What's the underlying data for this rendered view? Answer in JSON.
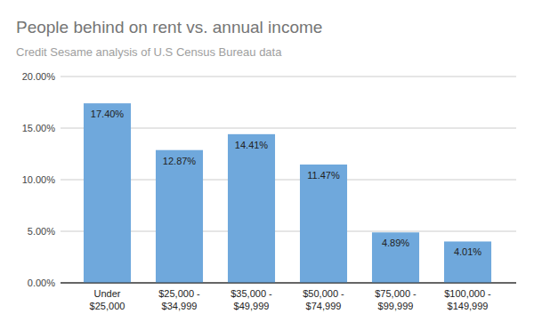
{
  "chart_data": {
    "type": "bar",
    "title": "People behind on rent vs. annual income",
    "subtitle": "Credit Sesame analysis of U.S Census Bureau data",
    "categories": [
      "Under $25,000",
      "$25,000 - $34,999",
      "$35,000 - $49,999",
      "$50,000 - $74,999",
      "$75,000 - $99,999",
      "$100,000 - $149,999"
    ],
    "values": [
      17.4,
      12.87,
      14.41,
      11.47,
      4.89,
      4.01
    ],
    "value_labels": [
      "17.40%",
      "12.87%",
      "14.41%",
      "11.47%",
      "4.89%",
      "4.01%"
    ],
    "color": "#6fa8dc",
    "ylim": [
      0,
      20
    ],
    "yticks": [
      {
        "value": 0,
        "label": "0.00%"
      },
      {
        "value": 5,
        "label": "5.00%"
      },
      {
        "value": 10,
        "label": "10.00%"
      },
      {
        "value": 15,
        "label": "15.00%"
      },
      {
        "value": 20,
        "label": "20.00%"
      }
    ],
    "grid": true,
    "data_labels": true
  }
}
